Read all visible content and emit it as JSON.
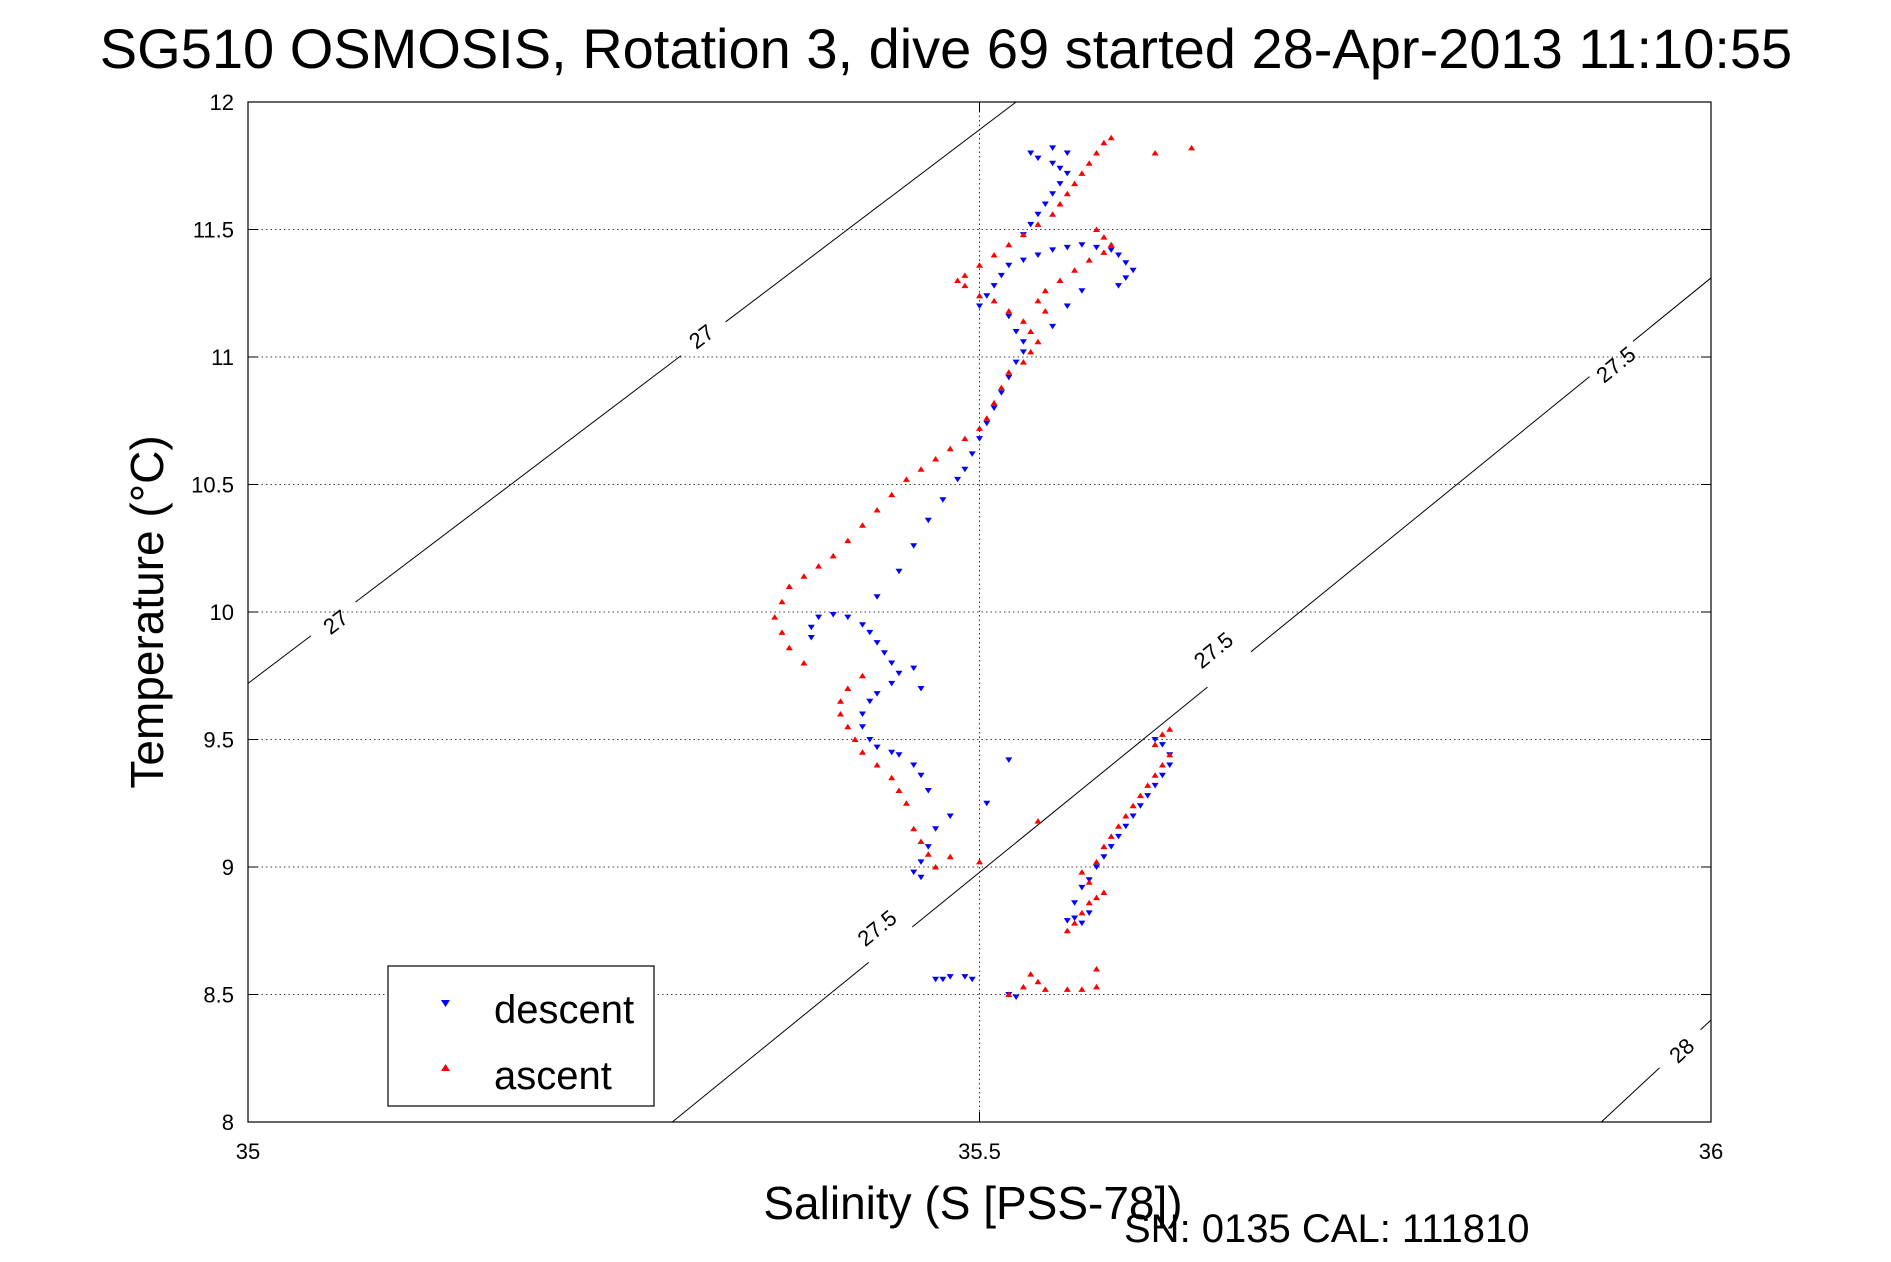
{
  "chart_data": {
    "type": "scatter",
    "title": "SG510 OSMOSIS, Rotation 3, dive 69 started 28-Apr-2013 11:10:55",
    "xlabel": "Salinity (S [PSS-78])",
    "ylabel": "Temperature (°C)",
    "xlim": [
      35,
      36
    ],
    "ylim": [
      8,
      12
    ],
    "xticks": [
      "35",
      "35.5",
      "36"
    ],
    "yticks": [
      "8",
      "8.5",
      "9",
      "9.5",
      "10",
      "10.5",
      "11",
      "11.5",
      "12"
    ],
    "grid": "dotted",
    "legend_position": "bottom-left",
    "footer": "SN: 0135  CAL: 111810",
    "colors": {
      "descent": "#0000ff",
      "ascent": "#ff0000",
      "contour": "#000000"
    },
    "density_contours": [
      {
        "level": "27",
        "points": [
          [
            35.0,
            9.72
          ],
          [
            35.525,
            12.0
          ]
        ],
        "labels": [
          [
            35.06,
            9.96
          ],
          [
            35.31,
            11.08
          ]
        ]
      },
      {
        "level": "27.5",
        "points": [
          [
            35.29,
            8.0
          ],
          [
            36.0,
            11.31
          ]
        ],
        "labels": [
          [
            35.43,
            8.76
          ],
          [
            35.66,
            9.85
          ],
          [
            35.935,
            10.97
          ]
        ]
      },
      {
        "level": "28",
        "points": [
          [
            35.925,
            8.0
          ],
          [
            36.0,
            8.4
          ]
        ],
        "labels": [
          [
            35.98,
            8.28
          ]
        ]
      }
    ],
    "series": [
      {
        "name": "descent",
        "marker": "triangle-down",
        "points": [
          [
            35.47,
            8.56
          ],
          [
            35.475,
            8.56
          ],
          [
            35.48,
            8.57
          ],
          [
            35.49,
            8.57
          ],
          [
            35.495,
            8.56
          ],
          [
            35.525,
            8.49
          ],
          [
            35.52,
            8.5
          ],
          [
            35.56,
            8.79
          ],
          [
            35.565,
            8.8
          ],
          [
            35.57,
            8.78
          ],
          [
            35.575,
            8.82
          ],
          [
            35.565,
            8.86
          ],
          [
            35.57,
            8.92
          ],
          [
            35.575,
            8.95
          ],
          [
            35.58,
            9.0
          ],
          [
            35.585,
            9.04
          ],
          [
            35.59,
            9.08
          ],
          [
            35.595,
            9.12
          ],
          [
            35.6,
            9.16
          ],
          [
            35.605,
            9.2
          ],
          [
            35.61,
            9.24
          ],
          [
            35.615,
            9.28
          ],
          [
            35.62,
            9.32
          ],
          [
            35.625,
            9.36
          ],
          [
            35.63,
            9.4
          ],
          [
            35.63,
            9.44
          ],
          [
            35.625,
            9.48
          ],
          [
            35.62,
            9.5
          ],
          [
            35.52,
            9.42
          ],
          [
            35.505,
            9.25
          ],
          [
            35.48,
            9.2
          ],
          [
            35.47,
            9.15
          ],
          [
            35.465,
            9.08
          ],
          [
            35.46,
            9.02
          ],
          [
            35.455,
            8.98
          ],
          [
            35.46,
            8.96
          ],
          [
            35.465,
            9.3
          ],
          [
            35.46,
            9.36
          ],
          [
            35.455,
            9.4
          ],
          [
            35.445,
            9.44
          ],
          [
            35.44,
            9.45
          ],
          [
            35.43,
            9.47
          ],
          [
            35.425,
            9.5
          ],
          [
            35.42,
            9.55
          ],
          [
            35.42,
            9.6
          ],
          [
            35.425,
            9.65
          ],
          [
            35.43,
            9.68
          ],
          [
            35.44,
            9.72
          ],
          [
            35.445,
            9.76
          ],
          [
            35.44,
            9.8
          ],
          [
            35.435,
            9.84
          ],
          [
            35.43,
            9.88
          ],
          [
            35.425,
            9.92
          ],
          [
            35.42,
            9.95
          ],
          [
            35.41,
            9.98
          ],
          [
            35.4,
            9.99
          ],
          [
            35.39,
            9.98
          ],
          [
            35.385,
            9.94
          ],
          [
            35.385,
            9.9
          ],
          [
            35.455,
            9.78
          ],
          [
            35.46,
            9.7
          ],
          [
            35.43,
            10.06
          ],
          [
            35.445,
            10.16
          ],
          [
            35.455,
            10.26
          ],
          [
            35.465,
            10.36
          ],
          [
            35.475,
            10.44
          ],
          [
            35.485,
            10.52
          ],
          [
            35.49,
            10.56
          ],
          [
            35.495,
            10.62
          ],
          [
            35.5,
            10.68
          ],
          [
            35.505,
            10.74
          ],
          [
            35.51,
            10.8
          ],
          [
            35.515,
            10.86
          ],
          [
            35.52,
            10.92
          ],
          [
            35.525,
            10.98
          ],
          [
            35.53,
            11.02
          ],
          [
            35.53,
            11.06
          ],
          [
            35.525,
            11.1
          ],
          [
            35.52,
            11.16
          ],
          [
            35.5,
            11.2
          ],
          [
            35.505,
            11.24
          ],
          [
            35.51,
            11.28
          ],
          [
            35.515,
            11.32
          ],
          [
            35.52,
            11.36
          ],
          [
            35.53,
            11.38
          ],
          [
            35.54,
            11.4
          ],
          [
            35.55,
            11.42
          ],
          [
            35.56,
            11.43
          ],
          [
            35.57,
            11.44
          ],
          [
            35.58,
            11.43
          ],
          [
            35.59,
            11.42
          ],
          [
            35.595,
            11.4
          ],
          [
            35.6,
            11.37
          ],
          [
            35.605,
            11.34
          ],
          [
            35.6,
            11.31
          ],
          [
            35.595,
            11.28
          ],
          [
            35.57,
            11.26
          ],
          [
            35.56,
            11.2
          ],
          [
            35.55,
            11.12
          ],
          [
            35.53,
            11.48
          ],
          [
            35.535,
            11.52
          ],
          [
            35.54,
            11.56
          ],
          [
            35.545,
            11.6
          ],
          [
            35.55,
            11.64
          ],
          [
            35.555,
            11.68
          ],
          [
            35.56,
            11.72
          ],
          [
            35.555,
            11.74
          ],
          [
            35.55,
            11.76
          ],
          [
            35.54,
            11.78
          ],
          [
            35.535,
            11.8
          ],
          [
            35.55,
            11.82
          ],
          [
            35.56,
            11.8
          ]
        ]
      },
      {
        "name": "ascent",
        "marker": "triangle-up",
        "points": [
          [
            35.52,
            8.5
          ],
          [
            35.53,
            8.53
          ],
          [
            35.54,
            8.55
          ],
          [
            35.545,
            8.52
          ],
          [
            35.56,
            8.52
          ],
          [
            35.57,
            8.52
          ],
          [
            35.58,
            8.53
          ],
          [
            35.535,
            8.58
          ],
          [
            35.58,
            8.6
          ],
          [
            35.56,
            8.75
          ],
          [
            35.565,
            8.78
          ],
          [
            35.57,
            8.82
          ],
          [
            35.575,
            8.86
          ],
          [
            35.58,
            8.88
          ],
          [
            35.585,
            8.9
          ],
          [
            35.575,
            8.94
          ],
          [
            35.57,
            8.98
          ],
          [
            35.58,
            9.02
          ],
          [
            35.585,
            9.08
          ],
          [
            35.59,
            9.12
          ],
          [
            35.595,
            9.16
          ],
          [
            35.6,
            9.2
          ],
          [
            35.605,
            9.24
          ],
          [
            35.61,
            9.28
          ],
          [
            35.615,
            9.32
          ],
          [
            35.62,
            9.36
          ],
          [
            35.625,
            9.4
          ],
          [
            35.63,
            9.44
          ],
          [
            35.62,
            9.48
          ],
          [
            35.625,
            9.52
          ],
          [
            35.63,
            9.54
          ],
          [
            35.54,
            9.18
          ],
          [
            35.5,
            9.02
          ],
          [
            35.48,
            9.04
          ],
          [
            35.47,
            9.0
          ],
          [
            35.465,
            9.05
          ],
          [
            35.46,
            9.1
          ],
          [
            35.455,
            9.15
          ],
          [
            35.45,
            9.25
          ],
          [
            35.445,
            9.3
          ],
          [
            35.44,
            9.35
          ],
          [
            35.43,
            9.4
          ],
          [
            35.42,
            9.45
          ],
          [
            35.415,
            9.5
          ],
          [
            35.41,
            9.55
          ],
          [
            35.405,
            9.6
          ],
          [
            35.405,
            9.65
          ],
          [
            35.41,
            9.7
          ],
          [
            35.42,
            9.75
          ],
          [
            35.38,
            9.8
          ],
          [
            35.37,
            9.86
          ],
          [
            35.365,
            9.92
          ],
          [
            35.36,
            9.98
          ],
          [
            35.365,
            10.04
          ],
          [
            35.37,
            10.1
          ],
          [
            35.38,
            10.14
          ],
          [
            35.39,
            10.18
          ],
          [
            35.4,
            10.22
          ],
          [
            35.41,
            10.28
          ],
          [
            35.42,
            10.34
          ],
          [
            35.43,
            10.4
          ],
          [
            35.44,
            10.46
          ],
          [
            35.45,
            10.52
          ],
          [
            35.46,
            10.56
          ],
          [
            35.47,
            10.6
          ],
          [
            35.48,
            10.64
          ],
          [
            35.49,
            10.68
          ],
          [
            35.5,
            10.72
          ],
          [
            35.505,
            10.76
          ],
          [
            35.51,
            10.82
          ],
          [
            35.515,
            10.88
          ],
          [
            35.52,
            10.94
          ],
          [
            35.53,
            10.98
          ],
          [
            35.535,
            11.02
          ],
          [
            35.54,
            11.06
          ],
          [
            35.535,
            11.1
          ],
          [
            35.53,
            11.14
          ],
          [
            35.52,
            11.18
          ],
          [
            35.51,
            11.22
          ],
          [
            35.5,
            11.24
          ],
          [
            35.49,
            11.28
          ],
          [
            35.485,
            11.3
          ],
          [
            35.49,
            11.32
          ],
          [
            35.5,
            11.36
          ],
          [
            35.51,
            11.4
          ],
          [
            35.52,
            11.44
          ],
          [
            35.53,
            11.48
          ],
          [
            35.54,
            11.52
          ],
          [
            35.55,
            11.56
          ],
          [
            35.555,
            11.6
          ],
          [
            35.56,
            11.64
          ],
          [
            35.565,
            11.68
          ],
          [
            35.57,
            11.72
          ],
          [
            35.575,
            11.76
          ],
          [
            35.58,
            11.8
          ],
          [
            35.585,
            11.84
          ],
          [
            35.59,
            11.86
          ],
          [
            35.58,
            11.5
          ],
          [
            35.585,
            11.47
          ],
          [
            35.59,
            11.44
          ],
          [
            35.585,
            11.41
          ],
          [
            35.575,
            11.38
          ],
          [
            35.565,
            11.34
          ],
          [
            35.555,
            11.3
          ],
          [
            35.545,
            11.26
          ],
          [
            35.54,
            11.22
          ],
          [
            35.545,
            11.18
          ],
          [
            35.62,
            11.8
          ],
          [
            35.645,
            11.82
          ]
        ]
      }
    ]
  }
}
